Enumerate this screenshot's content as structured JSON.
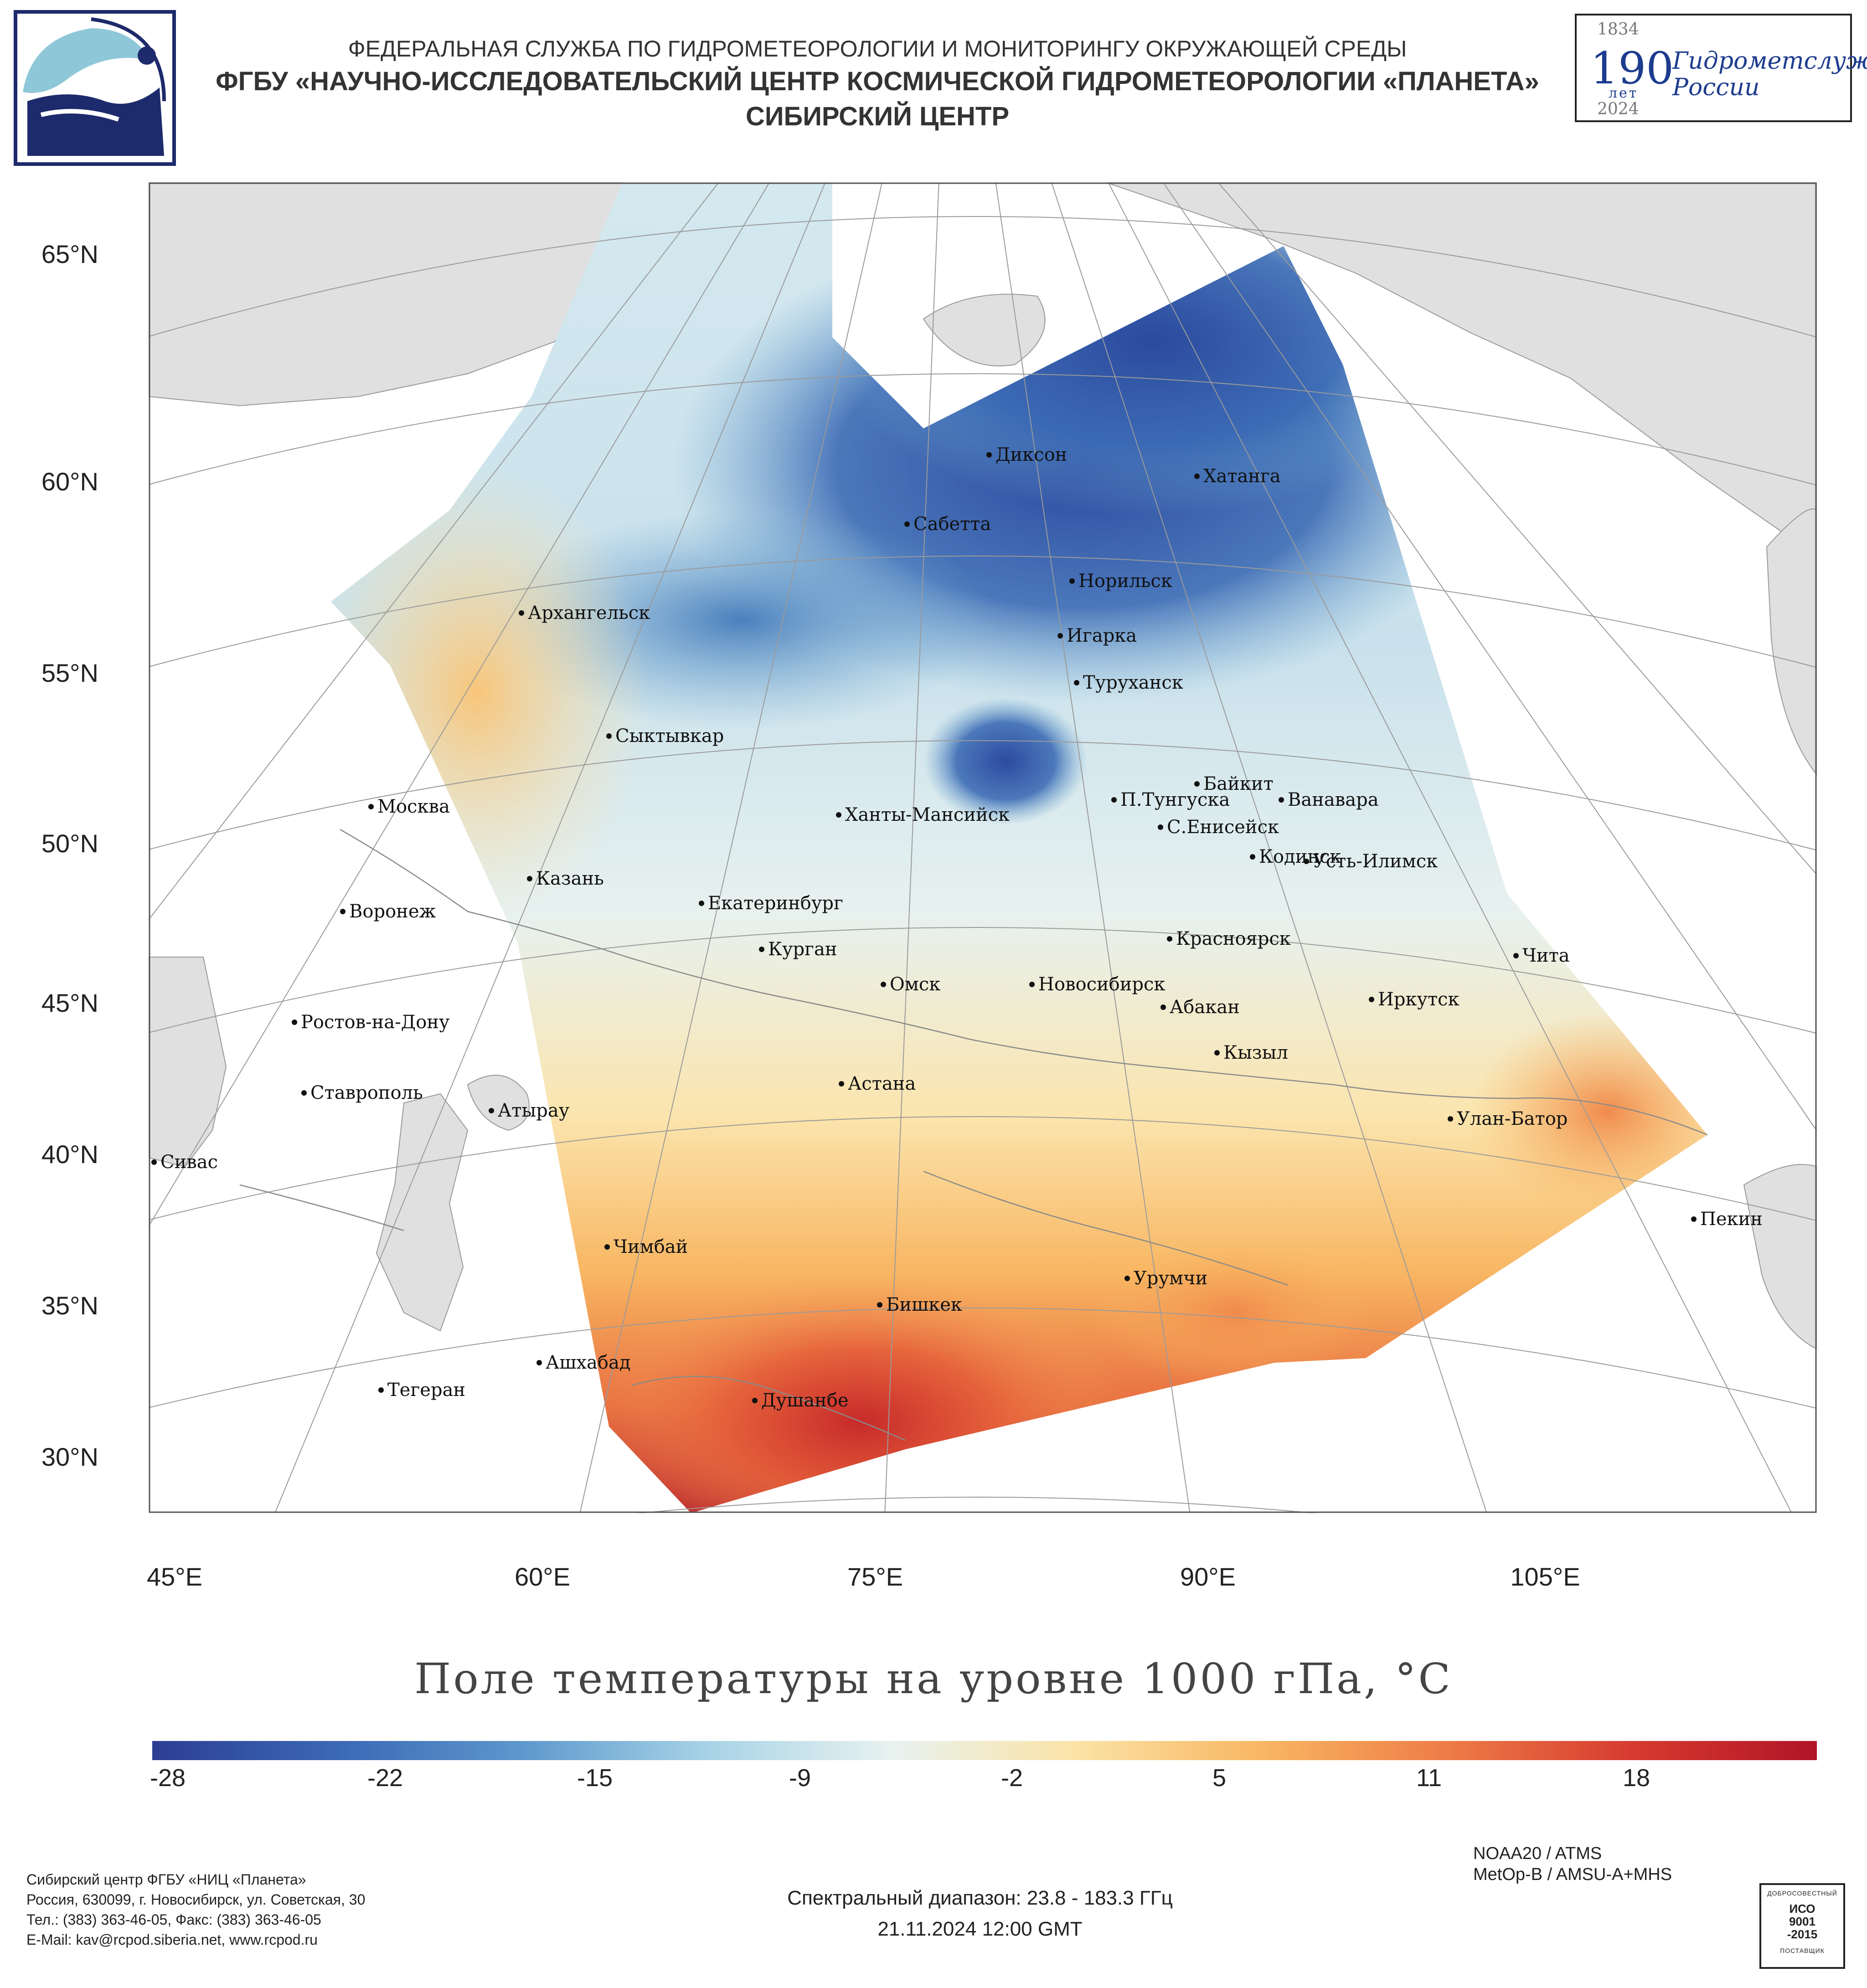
{
  "header": {
    "line1": "ФЕДЕРАЛЬНАЯ СЛУЖБА ПО ГИДРОМЕТЕОРОЛОГИИ И МОНИТОРИНГУ ОКРУЖАЮЩЕЙ СРЕДЫ",
    "line2": "ФГБУ «НАУЧНО-ИССЛЕДОВАТЕЛЬСКИЙ ЦЕНТР КОСМИЧЕСКОЙ ГИДРОМЕТЕОРОЛОГИИ «ПЛАНЕТА»",
    "line3": "СИБИРСКИЙ ЦЕНТР"
  },
  "badge": {
    "year_start": "1834",
    "years": "190",
    "years_word": "лет",
    "year_end": "2024",
    "text1": "Гидрометслужбе",
    "text2": "России"
  },
  "map": {
    "lat_labels": [
      "65°N",
      "60°N",
      "55°N",
      "50°N",
      "45°N",
      "40°N",
      "35°N",
      "30°N"
    ],
    "lon_labels": [
      "45°E",
      "60°E",
      "75°E",
      "90°E",
      "105°E"
    ],
    "cities": [
      "Диксон",
      "Хатанга",
      "Сабетта",
      "Норильск",
      "Архангельск",
      "Игарка",
      "Туруханск",
      "Сыктывкар",
      "Байкит",
      "П.Тунгуска",
      "Ванавара",
      "Москва",
      "Ханты-Мансийск",
      "С.Енисейск",
      "Казань",
      "Кодинск",
      "Усть-Илимск",
      "Екатеринбург",
      "Воронеж",
      "Красноярск",
      "Курган",
      "Чита",
      "Омск",
      "Новосибирск",
      "Иркутск",
      "Абакан",
      "Ростов-на-Дону",
      "Кызыл",
      "Астана",
      "Ставрополь",
      "Улан-Батор",
      "Атырау",
      "Сивас",
      "Пекин",
      "Чимбай",
      "Урумчи",
      "Бишкек",
      "Ашхабад",
      "Тегеран",
      "Душанбе"
    ]
  },
  "title": "Поле температуры на уровне 1000 гПа, °С",
  "colorbar": {
    "ticks": [
      "-28",
      "-22",
      "-15",
      "-9",
      "-2",
      "5",
      "11",
      "18"
    ],
    "colors": [
      "#2c3e93",
      "#3b68b5",
      "#5d98cd",
      "#a7d3e6",
      "#e8f2f0",
      "#fbe3a6",
      "#f8b662",
      "#ee7c47",
      "#d63b2f",
      "#b11426"
    ]
  },
  "footer": {
    "address": [
      "Сибирский центр ФГБУ «НИЦ «Планета»",
      "Россия, 630099, г. Новосибирск, ул. Советская, 30",
      "Тел.: (383) 363-46-05, Факс: (383) 363-46-05",
      "E-Mail: kav@rcpod.siberia.net, www.rcpod.ru"
    ],
    "spectral": "Спектральный диапазон: 23.8 - 183.3 ГГц",
    "datetime": "21.11.2024 12:00 GMT",
    "instrument1": "NOAA20 / ATMS",
    "instrument2": "MetOp-B / AMSU-A+MHS",
    "iso_top": "ДОБРОСОВЕСТНЫЙ",
    "iso_mid1": "ИСО",
    "iso_mid2": "9001",
    "iso_mid3": "-2015",
    "iso_bottom": "ПОСТАВЩИК"
  }
}
